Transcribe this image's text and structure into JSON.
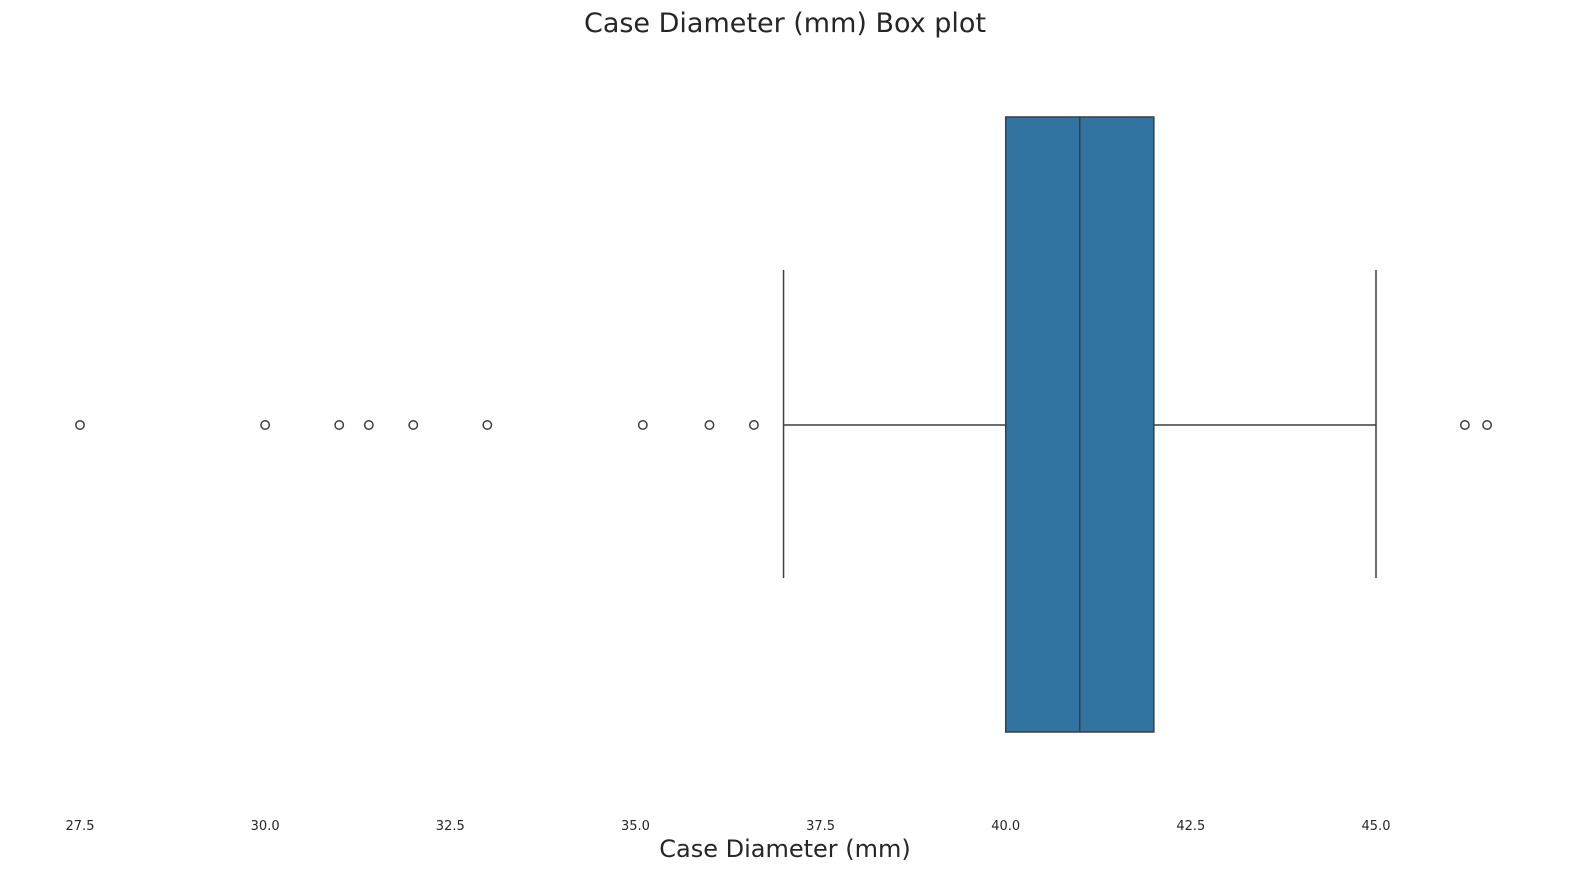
{
  "chart_data": {
    "type": "box",
    "title": "Case Diameter (mm) Box plot",
    "xlabel": "Case Diameter (mm)",
    "ylabel": "",
    "xlim": [
      26.9,
      47.3
    ],
    "ticks": [
      "27.5",
      "30.0",
      "32.5",
      "35.0",
      "37.5",
      "40.0",
      "42.5",
      "45.0"
    ],
    "box": {
      "whisker_low": 37.0,
      "q1": 40.0,
      "median": 41.0,
      "q3": 42.0,
      "whisker_high": 45.0
    },
    "outliers": [
      27.5,
      30.0,
      31.0,
      31.4,
      32.0,
      33.0,
      35.1,
      36.0,
      36.6,
      46.2,
      46.5
    ],
    "grid": false,
    "colors": {
      "box_fill": "#3274a1",
      "line": "#3d3d3d",
      "text": "#262626"
    }
  }
}
